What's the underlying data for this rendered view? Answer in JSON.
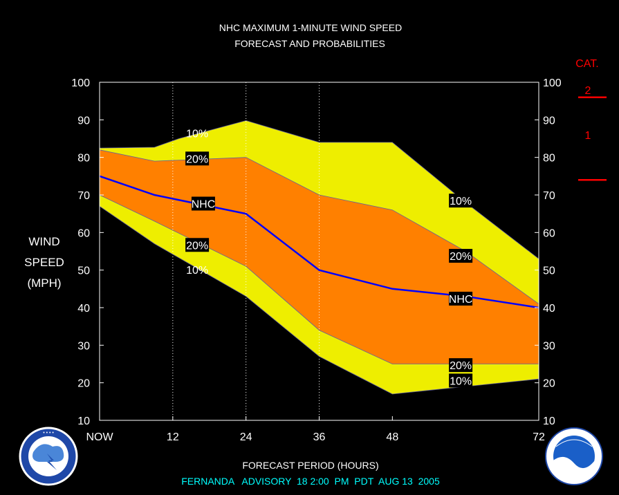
{
  "chart_data": {
    "type": "area",
    "title": "NHC MAXIMUM 1-MINUTE WIND SPEED",
    "subtitle": "FORECAST AND PROBABILITIES",
    "ylabel_lines": [
      "WIND",
      "SPEED",
      "(MPH)"
    ],
    "xlabel": "FORECAST PERIOD (HOURS)",
    "footer": "FERNANDA   ADVISORY  18 2:00  PM  PDT  AUG 13  2005",
    "x_ticks": [
      {
        "value": 0,
        "label": "NOW"
      },
      {
        "value": 12,
        "label": "12"
      },
      {
        "value": 24,
        "label": "24"
      },
      {
        "value": 36,
        "label": "36"
      },
      {
        "value": 48,
        "label": "48"
      },
      {
        "value": 72,
        "label": "72"
      }
    ],
    "y_ticks": [
      10,
      20,
      30,
      40,
      50,
      60,
      70,
      80,
      90,
      100
    ],
    "xlim": [
      0,
      72
    ],
    "ylim": [
      10,
      100
    ],
    "grid_x": [
      12,
      24,
      36
    ],
    "colors": {
      "band10": "#eeee00",
      "band20": "#ff8000",
      "nhc": "#0000ff",
      "text": "#ffffff",
      "cat": "#ff0000",
      "footer": "#00ffff"
    },
    "series": [
      {
        "key": "upper10",
        "x": [
          0,
          9,
          13,
          24,
          36,
          48,
          60,
          72
        ],
        "values": [
          82.5,
          82.7,
          85,
          89.8,
          84,
          84,
          68,
          53
        ]
      },
      {
        "key": "upper20",
        "x": [
          0,
          9,
          24,
          36,
          48,
          60,
          72
        ],
        "values": [
          82,
          79,
          80,
          70,
          66,
          55,
          41
        ]
      },
      {
        "key": "nhc",
        "name": "NHC",
        "x": [
          0,
          9,
          24,
          36,
          48,
          60,
          72
        ],
        "values": [
          75,
          70,
          65,
          50,
          45,
          43,
          40
        ]
      },
      {
        "key": "lower20",
        "x": [
          0,
          9,
          24,
          36,
          48,
          60,
          72
        ],
        "values": [
          70,
          63,
          51,
          34,
          25,
          25,
          25
        ]
      },
      {
        "key": "lower10",
        "x": [
          0,
          9,
          24,
          36,
          48,
          60,
          72
        ],
        "values": [
          67,
          57,
          43,
          27,
          17,
          19,
          21
        ]
      }
    ],
    "bands": [
      {
        "from": "lower10",
        "to": "upper10",
        "color_key": "band10"
      },
      {
        "from": "lower20",
        "to": "upper20",
        "color_key": "band20"
      }
    ],
    "annotations": [
      {
        "text": "10%",
        "x": 16,
        "y": 86.5,
        "boxed": false
      },
      {
        "text": "20%",
        "x": 16,
        "y": 79.7,
        "boxed": true
      },
      {
        "text": "NHC",
        "x": 17,
        "y": 67.7,
        "boxed": true
      },
      {
        "text": "20%",
        "x": 16,
        "y": 56.7,
        "boxed": true
      },
      {
        "text": "10%",
        "x": 16,
        "y": 50.1,
        "boxed": false
      },
      {
        "text": "10%",
        "x": 59.2,
        "y": 68.5,
        "boxed": true
      },
      {
        "text": "20%",
        "x": 59.2,
        "y": 53.8,
        "boxed": true
      },
      {
        "text": "NHC",
        "x": 59.2,
        "y": 42.4,
        "boxed": true
      },
      {
        "text": "20%",
        "x": 59.2,
        "y": 24.7,
        "boxed": true
      },
      {
        "text": "10%",
        "x": 59.2,
        "y": 20.6,
        "boxed": true
      }
    ],
    "categories_scale": {
      "title": "CAT.",
      "labels": [
        {
          "text": "2",
          "y": 98
        },
        {
          "text": "1",
          "y": 86
        }
      ],
      "thresholds": [
        96,
        74
      ]
    }
  }
}
